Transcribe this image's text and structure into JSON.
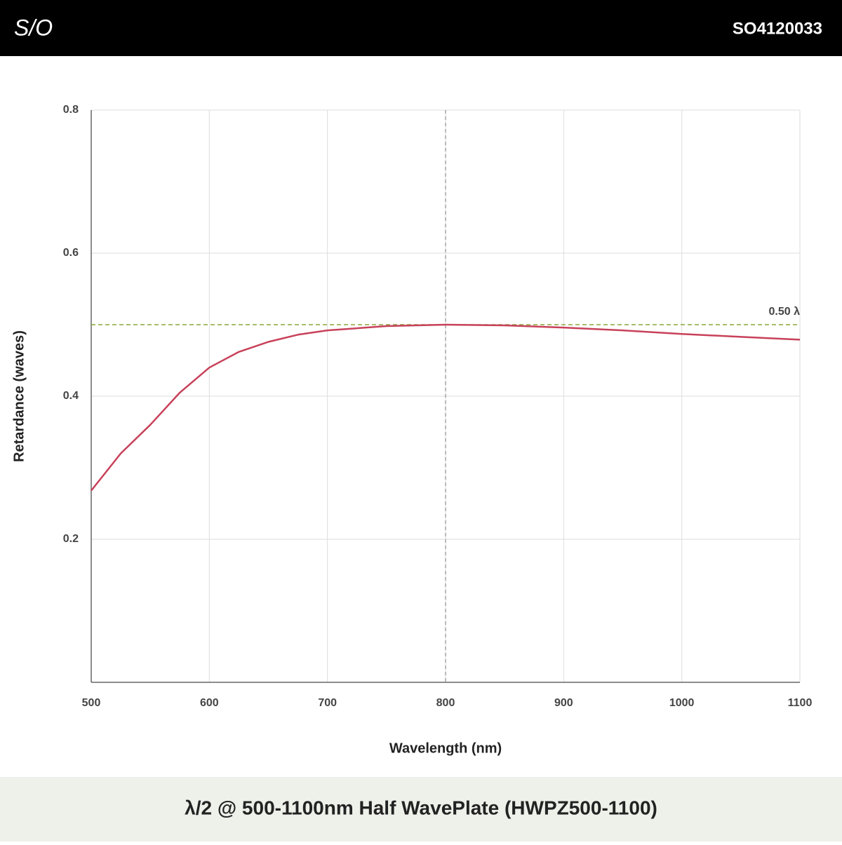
{
  "header": {
    "logo": "S/O",
    "code": "SO4120033"
  },
  "chart_data": {
    "type": "line",
    "title": "λ/2 @ 500-1100nm Half WavePlate (HWPZ500-1100)",
    "x_label": "Wavelength (nm)",
    "y_label": "Retardance (waves)",
    "x": [
      500,
      525,
      550,
      575,
      600,
      625,
      650,
      675,
      700,
      750,
      800,
      850,
      900,
      950,
      1000,
      1050,
      1100
    ],
    "series": [
      {
        "name": "Retardance",
        "color": "#c8415a",
        "values": [
          0.268,
          0.32,
          0.36,
          0.405,
          0.44,
          0.462,
          0.476,
          0.486,
          0.492,
          0.498,
          0.5,
          0.499,
          0.496,
          0.492,
          0.487,
          0.483,
          0.479
        ]
      }
    ],
    "xlim": [
      500,
      1100
    ],
    "xticks": [
      500,
      600,
      700,
      800,
      900,
      1000,
      1100
    ],
    "ylim": [
      0,
      0.8
    ],
    "yticks": [
      0.2,
      0.4,
      0.6,
      0.8
    ],
    "grid": true,
    "reference_lines": {
      "x": 800,
      "x_color": "#777777",
      "y": 0.5,
      "y_color": "#8aa63a",
      "y_label": "0.50 λ"
    }
  }
}
